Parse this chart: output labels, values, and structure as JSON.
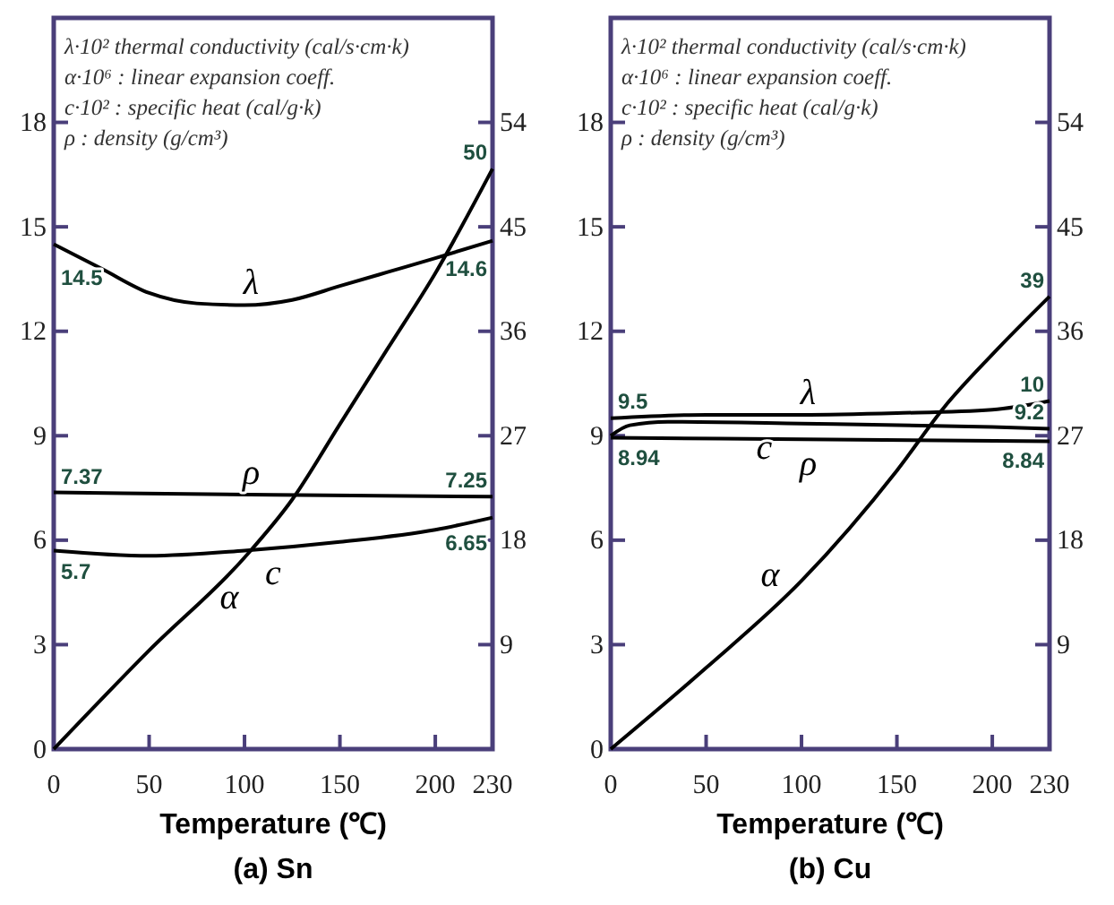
{
  "chart_data": [
    {
      "type": "line",
      "title": "(a) Sn",
      "xlabel": "Temperature (℃)",
      "xlim": [
        0,
        230
      ],
      "xticks": [
        0,
        50,
        100,
        150,
        200,
        230
      ],
      "ylim": [
        0,
        21
      ],
      "yticks": [
        0,
        3,
        6,
        9,
        12,
        15,
        18
      ],
      "y2lim": [
        0,
        63
      ],
      "y2ticks": [
        9,
        18,
        27,
        36,
        45,
        54
      ],
      "grid": false,
      "marker": "none",
      "line_style": "solid",
      "annotations": [
        "λ·10² thermal conductivity (cal/s·cm·k)",
        "α·10⁶ : linear expansion coeff.",
        "c·10² : specific heat (cal/g·k)",
        "ρ : density (g/cm³)"
      ],
      "series": [
        {
          "name": "λ",
          "color": "#000000",
          "x": [
            0,
            25,
            50,
            75,
            100,
            125,
            150,
            175,
            200,
            230
          ],
          "values": [
            14.5,
            13.8,
            13.1,
            12.8,
            12.75,
            12.9,
            13.3,
            13.7,
            14.1,
            14.6
          ],
          "value_labels": [
            "14.5",
            null,
            null,
            null,
            null,
            null,
            null,
            null,
            null,
            "14.6"
          ]
        },
        {
          "name": "α",
          "color": "#000000",
          "axis": "y2",
          "x": [
            0,
            50,
            100,
            125,
            150,
            175,
            200,
            230
          ],
          "values": [
            0,
            8.5,
            16.5,
            21.5,
            28,
            34.5,
            41,
            50
          ],
          "value_labels": [
            null,
            null,
            null,
            null,
            null,
            null,
            null,
            "50"
          ]
        },
        {
          "name": "ρ",
          "color": "#000000",
          "x": [
            0,
            115,
            230
          ],
          "values": [
            7.37,
            7.3,
            7.25
          ],
          "value_labels": [
            "7.37",
            null,
            "7.25"
          ]
        },
        {
          "name": "c",
          "color": "#000000",
          "x": [
            0,
            50,
            100,
            150,
            200,
            230
          ],
          "values": [
            5.7,
            5.55,
            5.7,
            5.95,
            6.3,
            6.65
          ],
          "value_labels": [
            "5.7",
            null,
            null,
            null,
            null,
            "6.65"
          ]
        }
      ]
    },
    {
      "type": "line",
      "title": "(b) Cu",
      "xlabel": "Temperature (℃)",
      "xlim": [
        0,
        230
      ],
      "xticks": [
        0,
        50,
        100,
        150,
        200,
        230
      ],
      "ylim": [
        0,
        21
      ],
      "yticks": [
        0,
        3,
        6,
        9,
        12,
        15,
        18
      ],
      "y2lim": [
        0,
        63
      ],
      "y2ticks": [
        9,
        18,
        27,
        36,
        45,
        54
      ],
      "grid": false,
      "marker": "none",
      "line_style": "solid",
      "annotations": [
        "λ·10² thermal conductivity (cal/s·cm·k)",
        "α·10⁶ : linear expansion coeff.",
        "c·10² : specific heat (cal/g·k)",
        "ρ : density (g/cm³)"
      ],
      "series": [
        {
          "name": "λ",
          "color": "#000000",
          "x": [
            0,
            50,
            100,
            150,
            200,
            230
          ],
          "values": [
            9.5,
            9.6,
            9.6,
            9.65,
            9.75,
            10
          ],
          "value_labels": [
            "9.5",
            null,
            null,
            null,
            null,
            "10"
          ]
        },
        {
          "name": "α",
          "color": "#000000",
          "axis": "y2",
          "x": [
            0,
            50,
            100,
            150,
            175,
            200,
            230
          ],
          "values": [
            0,
            7,
            14.5,
            24,
            29.5,
            34,
            39
          ],
          "value_labels": [
            null,
            null,
            null,
            null,
            null,
            null,
            "39"
          ]
        },
        {
          "name": "ρ",
          "color": "#000000",
          "x": [
            0,
            115,
            230
          ],
          "values": [
            8.94,
            8.89,
            8.84
          ],
          "value_labels": [
            "8.94",
            null,
            "8.84"
          ]
        },
        {
          "name": "c",
          "color": "#000000",
          "x": [
            0,
            10,
            30,
            100,
            200,
            230
          ],
          "values": [
            9.0,
            9.3,
            9.4,
            9.35,
            9.25,
            9.2
          ],
          "value_labels": [
            null,
            null,
            null,
            null,
            null,
            "9.2"
          ]
        }
      ]
    }
  ]
}
